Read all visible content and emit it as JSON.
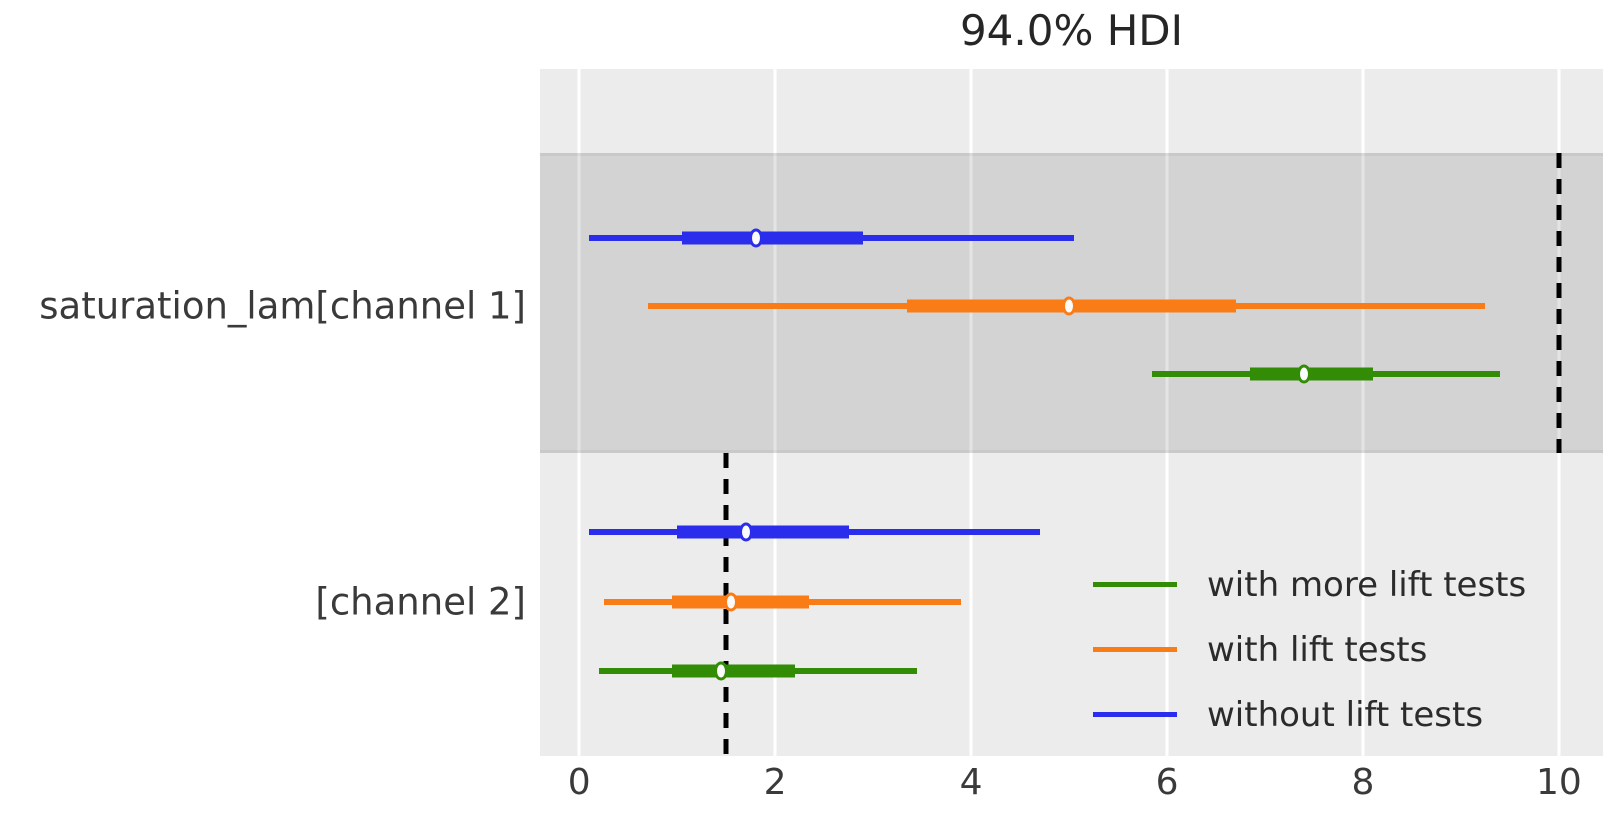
{
  "title": {
    "text": "94.0% HDI"
  },
  "y_axis": {
    "labels": [
      "saturation_lam[channel 1]",
      "[channel 2]"
    ]
  },
  "x_axis": {
    "ticks": [
      "0",
      "2",
      "4",
      "6",
      "8",
      "10"
    ]
  },
  "legend": {
    "items": [
      {
        "label": "with more lift tests",
        "color": "#328c06"
      },
      {
        "label": "with lift tests",
        "color": "#fa7c17"
      },
      {
        "label": "without lift tests",
        "color": "#2a2eec"
      }
    ]
  },
  "colors": {
    "plot_background": "#ececec",
    "highlight_band": "rgba(0,0,0,0.105)",
    "gridline": "#ffffff",
    "tick_text": "#3a3a3a",
    "title_text": "#262626",
    "reference_line": "#000000",
    "blue": "#2a2eec",
    "orange": "#fa7c17",
    "green": "#328c06"
  },
  "chart_data": {
    "type": "forest",
    "title": "94.0% HDI",
    "hdi_prob_percent": 94.0,
    "xlim": [
      -0.4,
      10.45
    ],
    "x_ticks": [
      0,
      2,
      4,
      6,
      8,
      10
    ],
    "grid": true,
    "legend_position": "lower right",
    "params": [
      {
        "label": "saturation_lam[channel 1]",
        "highlighted": true,
        "ref_line_x": 10,
        "intervals": [
          {
            "series": "without lift tests",
            "color": "#2a2eec",
            "hdi": [
              0.1,
              5.05
            ],
            "interquartile": [
              1.05,
              2.9
            ],
            "median": 1.8
          },
          {
            "series": "with lift tests",
            "color": "#fa7c17",
            "hdi": [
              0.7,
              9.25
            ],
            "interquartile": [
              3.35,
              6.7
            ],
            "median": 5.0
          },
          {
            "series": "with more lift tests",
            "color": "#328c06",
            "hdi": [
              5.85,
              9.4
            ],
            "interquartile": [
              6.85,
              8.1
            ],
            "median": 7.4
          }
        ]
      },
      {
        "label": "[channel 2]",
        "highlighted": false,
        "ref_line_x": 1.5,
        "intervals": [
          {
            "series": "without lift tests",
            "color": "#2a2eec",
            "hdi": [
              0.1,
              4.7
            ],
            "interquartile": [
              1.0,
              2.75
            ],
            "median": 1.7
          },
          {
            "series": "with lift tests",
            "color": "#fa7c17",
            "hdi": [
              0.25,
              3.9
            ],
            "interquartile": [
              0.95,
              2.35
            ],
            "median": 1.55
          },
          {
            "series": "with more lift tests",
            "color": "#328c06",
            "hdi": [
              0.2,
              3.45
            ],
            "interquartile": [
              0.95,
              2.2
            ],
            "median": 1.45
          }
        ]
      }
    ]
  }
}
